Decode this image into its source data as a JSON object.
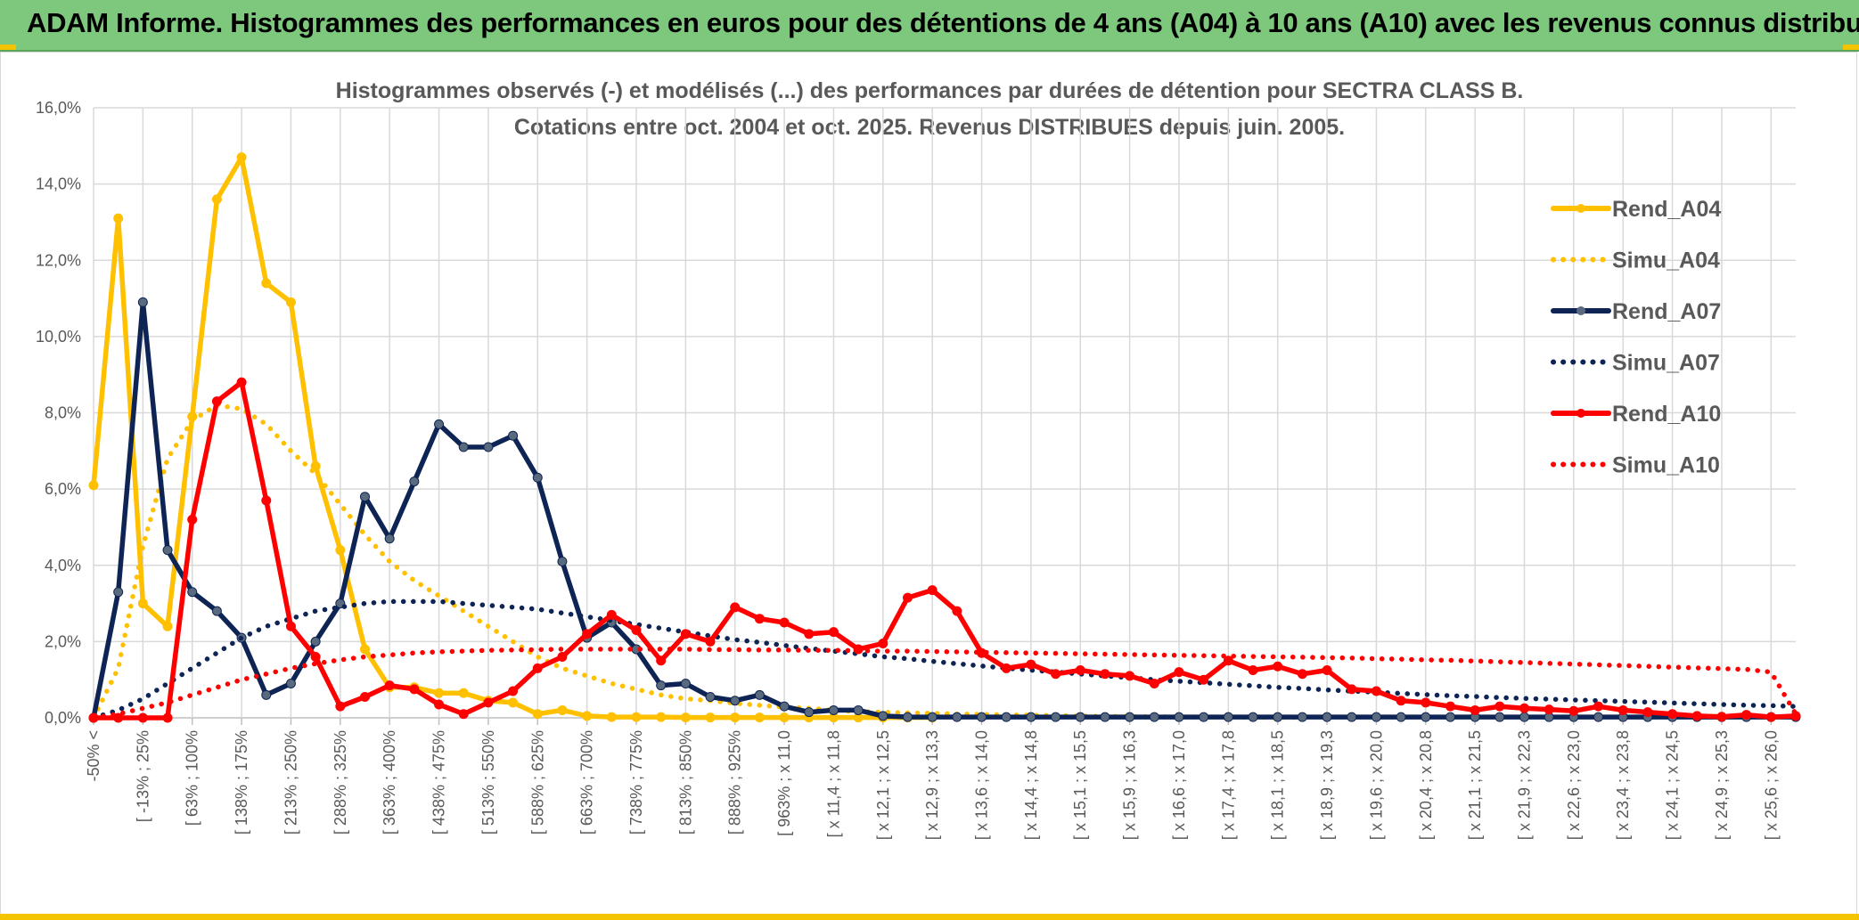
{
  "header": {
    "title": "ADAM Informe. Histogrammes des performances en euros pour des détentions de 4 ans (A04) à 10 ans (A10) avec les revenus connus distribués"
  },
  "chart_data": {
    "type": "line",
    "title_line1": "Histogrammes observés (-) et modélisés (...) des performances par durées de détention pour SECTRA CLASS B.",
    "title_line2": "Cotations entre oct. 2004 et oct. 2025. Revenus DISTRIBUES depuis juin. 2005.",
    "ylim": [
      0,
      16
    ],
    "yticks": [
      "0,0%",
      "2,0%",
      "4,0%",
      "6,0%",
      "8,0%",
      "10,0%",
      "12,0%",
      "14,0%",
      "16,0%"
    ],
    "xlabels": [
      "-50% <",
      "[ -13% ; 25%",
      "[ 63% ; 100%",
      "[ 138% ; 175%",
      "[ 213% ; 250%",
      "[ 288% ; 325%",
      "[ 363% ; 400%",
      "[ 438% ; 475%",
      "[ 513% ; 550%",
      "[ 588% ; 625%",
      "[ 663% ; 700%",
      "[ 738% ; 775%",
      "[ 813% ; 850%",
      "[ 888% ; 925%",
      "[ 963% ; x 11,0",
      "[ x 11,4 ; x 11,8",
      "[ x 12,1 ; x 12,5",
      "[ x 12,9 ; x 13,3",
      "[ x 13,6 ; x 14,0",
      "[ x 14,4 ; x 14,8",
      "[ x 15,1 ; x 15,5",
      "[ x 15,9 ; x 16,3",
      "[ x 16,6 ; x 17,0",
      "[ x 17,4 ; x 17,8",
      "[ x 18,1 ; x 18,5",
      "[ x 18,9 ; x 19,3",
      "[ x 19,6 ; x 20,0",
      "[ x 20,4 ; x 20,8",
      "[ x 21,1 ; x 21,5",
      "[ x 21,9 ; x 22,3",
      "[ x 22,6 ; x 23,0",
      "[ x 23,4 ; x 23,8",
      "[ x 24,1 ; x 24,5",
      "[ x 24,9 ; x 25,3",
      "[ x 25,6 ; x 26,0"
    ],
    "n_points": 70,
    "legend": [
      "Rend_A04",
      "Simu_A04",
      "Rend_A07",
      "Simu_A07",
      "Rend_A10",
      "Simu_A10"
    ],
    "series": [
      {
        "name": "Rend_A04",
        "style": "solid",
        "color": "#ffc000",
        "values": [
          6.1,
          13.1,
          3.0,
          2.4,
          7.9,
          13.6,
          14.7,
          11.4,
          10.9,
          6.6,
          4.4,
          1.8,
          0.8,
          0.8,
          0.65,
          0.65,
          0.45,
          0.4,
          0.1,
          0.2,
          0.05,
          0.02,
          0.02,
          0.02,
          0.01,
          0.01,
          0.01,
          0.01,
          0.01,
          0.01,
          0.01,
          0.01,
          0.01,
          0.01,
          0.01
        ]
      },
      {
        "name": "Simu_A04",
        "style": "dotted",
        "color": "#ffc000",
        "values": [
          0.0,
          1.3,
          4.5,
          6.8,
          7.8,
          8.2,
          8.1,
          7.7,
          7.0,
          6.4,
          5.6,
          4.8,
          4.1,
          3.6,
          3.2,
          2.8,
          2.4,
          2.0,
          1.6,
          1.3,
          1.1,
          0.9,
          0.75,
          0.6,
          0.5,
          0.45,
          0.38,
          0.33,
          0.28,
          0.25,
          0.2,
          0.16,
          0.15,
          0.13,
          0.12,
          0.1,
          0.09,
          0.08,
          0.07,
          0.06,
          0.05,
          0.04,
          0.035,
          0.03,
          0.025,
          0.02,
          0.02,
          0.015,
          0.01,
          0.01
        ]
      },
      {
        "name": "Rend_A07",
        "style": "solid",
        "color": "#0d2454",
        "values": [
          0.0,
          3.3,
          10.9,
          4.4,
          3.3,
          2.8,
          2.1,
          0.6,
          0.9,
          2.0,
          3.0,
          5.8,
          4.7,
          6.2,
          7.7,
          7.1,
          7.1,
          7.4,
          6.3,
          4.1,
          2.1,
          2.5,
          1.8,
          0.85,
          0.9,
          0.55,
          0.45,
          0.6,
          0.3,
          0.15,
          0.2,
          0.2,
          0.05,
          0.02,
          0.02,
          0.02,
          0.02,
          0.02,
          0.02,
          0.02,
          0.02,
          0.02,
          0.02,
          0.02,
          0.02,
          0.02,
          0.02,
          0.02,
          0.02,
          0.02,
          0.02,
          0.02,
          0.02,
          0.02,
          0.02,
          0.02,
          0.02,
          0.02,
          0.02,
          0.02,
          0.02,
          0.02,
          0.02,
          0.02,
          0.02,
          0.02,
          0.02,
          0.02,
          0.02,
          0.02
        ]
      },
      {
        "name": "Simu_A07",
        "style": "dotted",
        "color": "#0d2454",
        "values": [
          0.0,
          0.2,
          0.5,
          0.9,
          1.3,
          1.7,
          2.1,
          2.4,
          2.6,
          2.8,
          2.9,
          3.0,
          3.05,
          3.05,
          3.05,
          3.0,
          2.95,
          2.9,
          2.85,
          2.75,
          2.65,
          2.55,
          2.45,
          2.35,
          2.25,
          2.15,
          2.05,
          1.98,
          1.9,
          1.82,
          1.75,
          1.68,
          1.6,
          1.55,
          1.48,
          1.42,
          1.36,
          1.3,
          1.25,
          1.2,
          1.15,
          1.1,
          1.05,
          1.0,
          0.96,
          0.92,
          0.88,
          0.84,
          0.8,
          0.77,
          0.73,
          0.7,
          0.67,
          0.64,
          0.61,
          0.58,
          0.56,
          0.53,
          0.51,
          0.49,
          0.47,
          0.45,
          0.43,
          0.41,
          0.39,
          0.37,
          0.35,
          0.33,
          0.32,
          0.3
        ]
      },
      {
        "name": "Rend_A10",
        "style": "solid",
        "color": "#ff0000",
        "values": [
          0.0,
          0.0,
          0.0,
          0.0,
          5.2,
          8.3,
          8.8,
          5.7,
          2.4,
          1.6,
          0.3,
          0.55,
          0.85,
          0.75,
          0.35,
          0.1,
          0.4,
          0.7,
          1.3,
          1.6,
          2.2,
          2.7,
          2.3,
          1.5,
          2.2,
          2.0,
          2.9,
          2.6,
          2.5,
          2.2,
          2.25,
          1.8,
          1.95,
          3.15,
          3.35,
          2.8,
          1.7,
          1.3,
          1.4,
          1.15,
          1.25,
          1.15,
          1.1,
          0.9,
          1.2,
          1.0,
          1.5,
          1.25,
          1.35,
          1.15,
          1.25,
          0.75,
          0.7,
          0.45,
          0.4,
          0.3,
          0.2,
          0.3,
          0.25,
          0.22,
          0.18,
          0.3,
          0.2,
          0.15,
          0.1,
          0.05,
          0.03,
          0.08,
          0.02,
          0.05
        ]
      },
      {
        "name": "Simu_A10",
        "style": "dotted",
        "color": "#ff0000",
        "values": [
          0.0,
          0.1,
          0.25,
          0.4,
          0.6,
          0.8,
          1.0,
          1.15,
          1.3,
          1.42,
          1.52,
          1.6,
          1.65,
          1.7,
          1.73,
          1.75,
          1.77,
          1.78,
          1.79,
          1.8,
          1.8,
          1.8,
          1.8,
          1.8,
          1.8,
          1.79,
          1.79,
          1.78,
          1.78,
          1.77,
          1.77,
          1.76,
          1.75,
          1.75,
          1.74,
          1.73,
          1.72,
          1.71,
          1.7,
          1.69,
          1.68,
          1.67,
          1.66,
          1.65,
          1.64,
          1.63,
          1.62,
          1.61,
          1.6,
          1.59,
          1.58,
          1.57,
          1.55,
          1.54,
          1.52,
          1.51,
          1.49,
          1.47,
          1.45,
          1.43,
          1.41,
          1.39,
          1.37,
          1.35,
          1.33,
          1.31,
          1.29,
          1.27,
          1.2,
          0.1
        ]
      }
    ]
  }
}
